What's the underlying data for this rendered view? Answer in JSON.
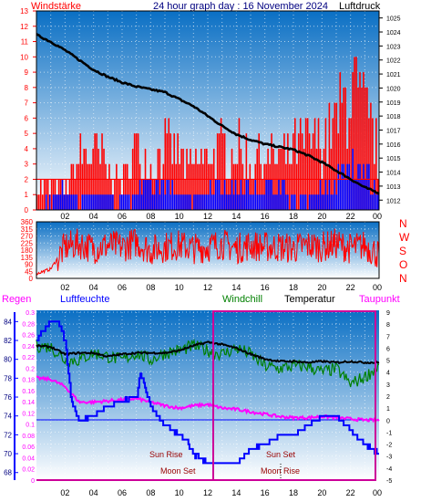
{
  "colors": {
    "bg_top": "#0a6fc4",
    "bg_bottom": "#ffffff",
    "red": "#ff0000",
    "blue": "#0000ff",
    "black": "#000000",
    "green": "#008000",
    "magenta": "#ff00ff",
    "navy": "#000080",
    "maroon": "#990000",
    "frame": "#cc0099"
  },
  "chart_data": [
    {
      "type": "line",
      "title": "24 hour graph day : 16 November 2024",
      "left_axis_label": "Windstärke",
      "right_axis_label": "Luftdruck",
      "x_ticks": [
        "00",
        "02",
        "04",
        "06",
        "08",
        "10",
        "12",
        "14",
        "16",
        "18",
        "20",
        "22",
        "00"
      ],
      "left_ticks": [
        "0",
        "1",
        "2",
        "3",
        "4",
        "5",
        "6",
        "7",
        "8",
        "9",
        "10",
        "11",
        "12",
        "13"
      ],
      "left_range": [
        0,
        13
      ],
      "right_ticks": [
        "1012",
        "1013",
        "1014",
        "1015",
        "1016",
        "1017",
        "1018",
        "1019",
        "1020",
        "1021",
        "1022",
        "1023",
        "1024",
        "1025"
      ],
      "right_range": [
        1011.3,
        1025.5
      ],
      "grid": true,
      "series": [
        {
          "axis": "right",
          "x": [
            0,
            1,
            2,
            3,
            4,
            5,
            6,
            7,
            8,
            9,
            10,
            11,
            12,
            13,
            14,
            15,
            16,
            17,
            18,
            19,
            20,
            21,
            22,
            23,
            24
          ],
          "values": [
            1023.8,
            1023.3,
            1022.7,
            1022.0,
            1021.3,
            1020.8,
            1020.4,
            1020.1,
            1019.9,
            1019.7,
            1019.2,
            1018.7,
            1018.0,
            1017.3,
            1016.7,
            1016.3,
            1016.0,
            1015.8,
            1015.6,
            1015.2,
            1014.7,
            1014.1,
            1013.5,
            1012.9,
            1012.5
          ]
        },
        {
          "name": "gust",
          "axis": "left",
          "x": [
            0,
            1,
            2,
            3,
            4,
            5,
            6,
            7,
            8,
            9,
            10,
            11,
            12,
            13,
            14,
            15,
            16,
            17,
            18,
            19,
            20,
            21,
            22,
            23,
            24
          ],
          "values": [
            2,
            2,
            2,
            5,
            6,
            4,
            3,
            6,
            4,
            6,
            5,
            4,
            5,
            6,
            6,
            5,
            5,
            5,
            6,
            6,
            7,
            8,
            12,
            9,
            5
          ]
        },
        {
          "name": "mean",
          "axis": "left",
          "x": [
            0,
            1,
            2,
            3,
            4,
            5,
            6,
            7,
            8,
            9,
            10,
            11,
            12,
            13,
            14,
            15,
            16,
            17,
            18,
            19,
            20,
            21,
            22,
            23,
            24
          ],
          "values": [
            0,
            1,
            2,
            1,
            2,
            1,
            1,
            2,
            2,
            2,
            2,
            1,
            2,
            2,
            2,
            2,
            2,
            2,
            1,
            1,
            2,
            3,
            5,
            4,
            1
          ]
        }
      ]
    },
    {
      "type": "line",
      "right_axis_label": "N W S O N",
      "right_axis_letters": [
        "N",
        "W",
        "S",
        "O",
        "N"
      ],
      "x_ticks": [
        "00",
        "02",
        "04",
        "06",
        "08",
        "10",
        "12",
        "14",
        "16",
        "18",
        "20",
        "22",
        "00"
      ],
      "left_ticks": [
        "0",
        "45",
        "90",
        "135",
        "180",
        "225",
        "270",
        "315",
        "360"
      ],
      "left_range": [
        0,
        360
      ],
      "grid": true,
      "series": [
        {
          "name": "direction",
          "x": [
            0,
            1,
            2,
            3,
            4,
            5,
            6,
            7,
            8,
            9,
            10,
            11,
            12,
            13,
            14,
            15,
            16,
            17,
            18,
            19,
            20,
            21,
            22,
            23,
            24
          ],
          "values": [
            30,
            60,
            200,
            220,
            190,
            210,
            200,
            230,
            180,
            200,
            210,
            190,
            200,
            220,
            190,
            210,
            200,
            200,
            190,
            210,
            200,
            220,
            190,
            210,
            150
          ]
        }
      ]
    },
    {
      "type": "line",
      "labels": [
        "Regen",
        "Luftfeuchte",
        "Windchill",
        "Temperatur",
        "Taupunkt"
      ],
      "x_ticks": [
        "00",
        "02",
        "04",
        "06",
        "08",
        "10",
        "12",
        "14",
        "16",
        "18",
        "20",
        "22",
        "00"
      ],
      "rain_ticks": [
        "0",
        "0.02",
        "0.04",
        "0.06",
        "0.08",
        "0.1",
        "0.12",
        "0.14",
        "0.16",
        "0.18",
        "0.2",
        "0.22",
        "0.24",
        "0.26",
        "0.28",
        "0.3"
      ],
      "rain_range": [
        0,
        0.3
      ],
      "humidity_ticks": [
        "68",
        "70",
        "72",
        "74",
        "76",
        "78",
        "80",
        "82",
        "84"
      ],
      "humidity_range": [
        67.2,
        85
      ],
      "temp_ticks": [
        "-5",
        "-4",
        "-3",
        "-2",
        "-1",
        "0",
        "1",
        "2",
        "3",
        "4",
        "5",
        "6",
        "7",
        "8",
        "9"
      ],
      "temp_range": [
        -5,
        9
      ],
      "grid": true,
      "annotations": [
        "Sun Rise",
        "Moon Set",
        "Sun Set",
        "Moon Rise"
      ],
      "series": [
        {
          "name": "Luftfeuchte",
          "axis": "humidity",
          "x": [
            0,
            1,
            1.5,
            2,
            2.4,
            3,
            4,
            5,
            6,
            7,
            7.3,
            8,
            9,
            10,
            10.5,
            11,
            11.5,
            12,
            13,
            14,
            15,
            16,
            17,
            18,
            19,
            20,
            21,
            22,
            23,
            24
          ],
          "values": [
            82,
            84,
            84,
            82,
            76,
            73.5,
            74,
            75,
            75.5,
            76,
            78.5,
            75,
            73,
            72,
            71.5,
            70,
            69.5,
            69,
            69,
            69,
            70.5,
            71,
            72,
            72,
            73,
            74,
            74,
            72.5,
            71,
            70
          ]
        },
        {
          "name": "Temperatur",
          "axis": "temp",
          "x": [
            0,
            1,
            2,
            3,
            4,
            5,
            6,
            7,
            8,
            9,
            10,
            11,
            12,
            13,
            14,
            15,
            16,
            17,
            18,
            19,
            20,
            21,
            22,
            23,
            24
          ],
          "values": [
            6.2,
            6.1,
            5.5,
            5.6,
            5.6,
            5.3,
            5.5,
            5.6,
            5.6,
            5.6,
            5.8,
            6.2,
            6.5,
            6.3,
            6.0,
            5.5,
            5.1,
            4.9,
            4.9,
            4.8,
            4.9,
            4.8,
            4.9,
            4.8,
            4.8
          ]
        },
        {
          "name": "Windchill",
          "axis": "temp",
          "x": [
            0,
            1,
            2,
            3,
            4,
            5,
            6,
            7,
            8,
            9,
            10,
            11,
            12,
            13,
            14,
            15,
            16,
            17,
            18,
            19,
            20,
            21,
            22,
            23,
            24
          ],
          "values": [
            6.2,
            6.1,
            5.0,
            5.0,
            5.6,
            5.3,
            5.0,
            5.6,
            5.0,
            5.6,
            5.8,
            6.2,
            5.8,
            5.5,
            6.0,
            5.5,
            4.5,
            4.3,
            4.5,
            4.5,
            4.0,
            4.3,
            3.0,
            3.6,
            4.5
          ]
        },
        {
          "name": "Taupunkt",
          "axis": "temp",
          "x": [
            0,
            1,
            2,
            3,
            4,
            5,
            6,
            7,
            8,
            9,
            10,
            11,
            12,
            13,
            14,
            15,
            16,
            17,
            18,
            19,
            20,
            21,
            22,
            23,
            24
          ],
          "values": [
            3.5,
            3.4,
            2.8,
            1.5,
            1.5,
            1.6,
            1.7,
            1.8,
            1.5,
            1.2,
            1.0,
            1.2,
            1.3,
            1.0,
            0.9,
            0.7,
            0.5,
            0.3,
            0.2,
            0.2,
            0.3,
            0.2,
            0.1,
            0.0,
            0.0
          ]
        }
      ]
    }
  ]
}
